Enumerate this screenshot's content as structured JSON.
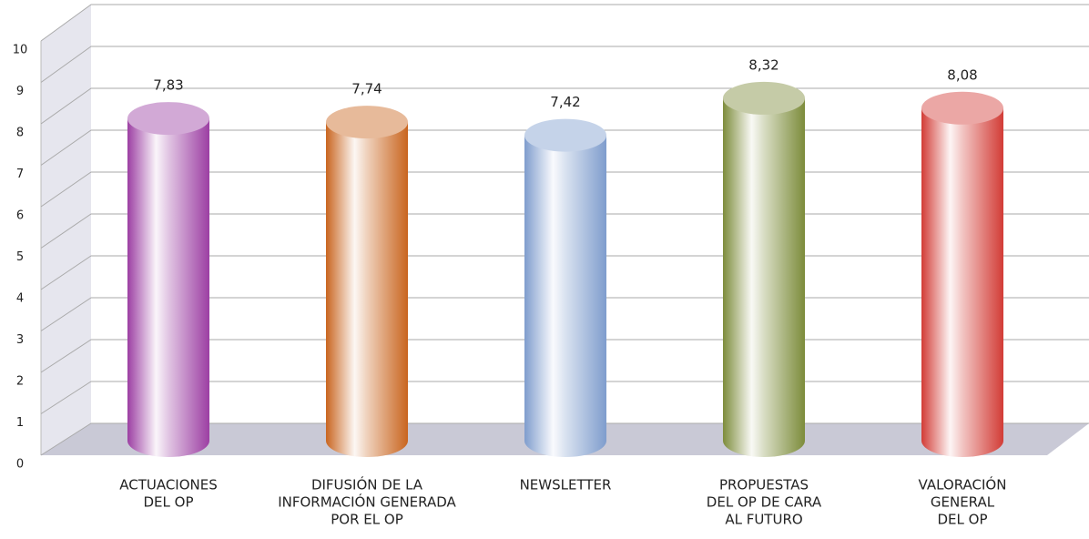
{
  "chart_data": {
    "type": "bar3d",
    "categories": [
      [
        "ACTUACIONES",
        "DEL OP"
      ],
      [
        "DIFUSIÓN DE LA",
        "INFORMACIÓN GENERADA",
        "POR EL OP"
      ],
      [
        "NEWSLETTER"
      ],
      [
        "PROPUESTAS",
        "DEL OP DE CARA",
        "AL FUTURO"
      ],
      [
        "VALORACIÓN",
        "GENERAL",
        "DEL OP"
      ]
    ],
    "values": [
      7.83,
      7.74,
      7.42,
      8.32,
      8.08
    ],
    "value_labels": [
      "7,83",
      "7,74",
      "7,42",
      "8,32",
      "8,08"
    ],
    "colors": [
      "#9c3fa3",
      "#c9651f",
      "#7f9dcd",
      "#7d8c3b",
      "#d23c36"
    ],
    "ylim": [
      0,
      10
    ],
    "yticks": [
      0,
      1,
      2,
      3,
      4,
      5,
      6,
      7,
      8,
      9,
      10
    ],
    "grid": true
  }
}
